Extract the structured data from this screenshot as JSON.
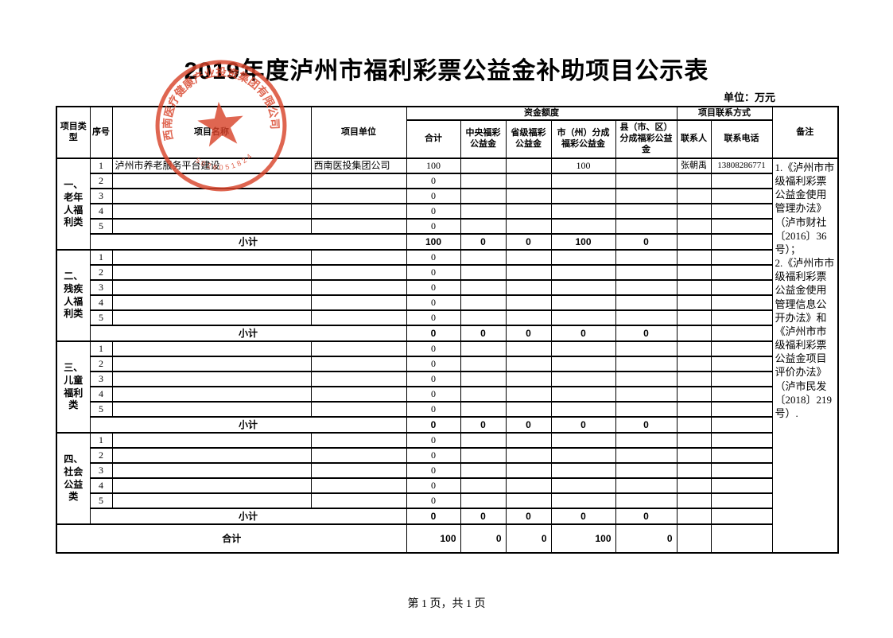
{
  "title": "2019年度泸州市福利彩票公益金补助项目公示表",
  "unit_note": "单位：万元",
  "footer": "第 1 页，共 1 页",
  "stamp": {
    "company": "西南医疗健康产业投资集团有限公司",
    "digits": "5026051824",
    "color": "#d9452c"
  },
  "table": {
    "headers": {
      "project_type": "项目类型",
      "seq": "序号",
      "project_name": "项目名称",
      "project_unit": "项目单位",
      "fund_amount": "资金额度",
      "total": "合计",
      "central": "中央福彩公益金",
      "provincial": "省级福彩公益金",
      "city": "市（州）分成福彩公益金",
      "county": "县（市、区）分成福彩公益金",
      "contact_info": "项目联系方式",
      "contact": "联系人",
      "phone": "联系电话",
      "remark": "备注"
    },
    "groups": [
      {
        "label": "一、老年人福利类",
        "rows": [
          {
            "seq": "1",
            "name": "泸州市养老服务平台建设",
            "unit": "西南医投集团公司",
            "total": "100",
            "central": "",
            "provincial": "",
            "city": "100",
            "county": "",
            "contact": "张朝禹",
            "phone": "13808286771"
          },
          {
            "seq": "2",
            "name": "",
            "unit": "",
            "total": "0",
            "central": "",
            "provincial": "",
            "city": "",
            "county": "",
            "contact": "",
            "phone": ""
          },
          {
            "seq": "3",
            "name": "",
            "unit": "",
            "total": "0",
            "central": "",
            "provincial": "",
            "city": "",
            "county": "",
            "contact": "",
            "phone": ""
          },
          {
            "seq": "4",
            "name": "",
            "unit": "",
            "total": "0",
            "central": "",
            "provincial": "",
            "city": "",
            "county": "",
            "contact": "",
            "phone": ""
          },
          {
            "seq": "5",
            "name": "",
            "unit": "",
            "total": "0",
            "central": "",
            "provincial": "",
            "city": "",
            "county": "",
            "contact": "",
            "phone": ""
          }
        ],
        "subtotal": {
          "label": "小计",
          "total": "100",
          "central": "0",
          "provincial": "0",
          "city": "100",
          "county": "0"
        }
      },
      {
        "label": "二、残疾人福利类",
        "rows": [
          {
            "seq": "1",
            "name": "",
            "unit": "",
            "total": "0",
            "central": "",
            "provincial": "",
            "city": "",
            "county": "",
            "contact": "",
            "phone": ""
          },
          {
            "seq": "2",
            "name": "",
            "unit": "",
            "total": "0",
            "central": "",
            "provincial": "",
            "city": "",
            "county": "",
            "contact": "",
            "phone": ""
          },
          {
            "seq": "3",
            "name": "",
            "unit": "",
            "total": "0",
            "central": "",
            "provincial": "",
            "city": "",
            "county": "",
            "contact": "",
            "phone": ""
          },
          {
            "seq": "4",
            "name": "",
            "unit": "",
            "total": "0",
            "central": "",
            "provincial": "",
            "city": "",
            "county": "",
            "contact": "",
            "phone": ""
          },
          {
            "seq": "5",
            "name": "",
            "unit": "",
            "total": "0",
            "central": "",
            "provincial": "",
            "city": "",
            "county": "",
            "contact": "",
            "phone": ""
          }
        ],
        "subtotal": {
          "label": "小计",
          "total": "0",
          "central": "0",
          "provincial": "0",
          "city": "0",
          "county": "0"
        }
      },
      {
        "label": "三、儿童福利类",
        "rows": [
          {
            "seq": "1",
            "name": "",
            "unit": "",
            "total": "0",
            "central": "",
            "provincial": "",
            "city": "",
            "county": "",
            "contact": "",
            "phone": ""
          },
          {
            "seq": "2",
            "name": "",
            "unit": "",
            "total": "0",
            "central": "",
            "provincial": "",
            "city": "",
            "county": "",
            "contact": "",
            "phone": ""
          },
          {
            "seq": "3",
            "name": "",
            "unit": "",
            "total": "0",
            "central": "",
            "provincial": "",
            "city": "",
            "county": "",
            "contact": "",
            "phone": ""
          },
          {
            "seq": "4",
            "name": "",
            "unit": "",
            "total": "0",
            "central": "",
            "provincial": "",
            "city": "",
            "county": "",
            "contact": "",
            "phone": ""
          },
          {
            "seq": "5",
            "name": "",
            "unit": "",
            "total": "0",
            "central": "",
            "provincial": "",
            "city": "",
            "county": "",
            "contact": "",
            "phone": ""
          }
        ],
        "subtotal": {
          "label": "小计",
          "total": "0",
          "central": "0",
          "provincial": "0",
          "city": "0",
          "county": "0"
        }
      },
      {
        "label": "四、社会公益类",
        "rows": [
          {
            "seq": "1",
            "name": "",
            "unit": "",
            "total": "0",
            "central": "",
            "provincial": "",
            "city": "",
            "county": "",
            "contact": "",
            "phone": ""
          },
          {
            "seq": "2",
            "name": "",
            "unit": "",
            "total": "0",
            "central": "",
            "provincial": "",
            "city": "",
            "county": "",
            "contact": "",
            "phone": ""
          },
          {
            "seq": "3",
            "name": "",
            "unit": "",
            "total": "0",
            "central": "",
            "provincial": "",
            "city": "",
            "county": "",
            "contact": "",
            "phone": ""
          },
          {
            "seq": "4",
            "name": "",
            "unit": "",
            "total": "0",
            "central": "",
            "provincial": "",
            "city": "",
            "county": "",
            "contact": "",
            "phone": ""
          },
          {
            "seq": "5",
            "name": "",
            "unit": "",
            "total": "0",
            "central": "",
            "provincial": "",
            "city": "",
            "county": "",
            "contact": "",
            "phone": ""
          }
        ],
        "subtotal": {
          "label": "小计",
          "total": "0",
          "central": "0",
          "provincial": "0",
          "city": "0",
          "county": "0"
        }
      }
    ],
    "grand_total": {
      "label": "合计",
      "total": "100",
      "central": "0",
      "provincial": "0",
      "city": "100",
      "county": "0"
    },
    "remark": "1.《泸州市市级福利彩票公益金使用管理办法》（泸市财社〔2016〕36号）；\n2.《泸州市市级福利彩票公益金使用管理信息公开办法》和《泸州市市级福利彩票公益金项目评价办法》（泸市民发〔2018〕219号）."
  }
}
